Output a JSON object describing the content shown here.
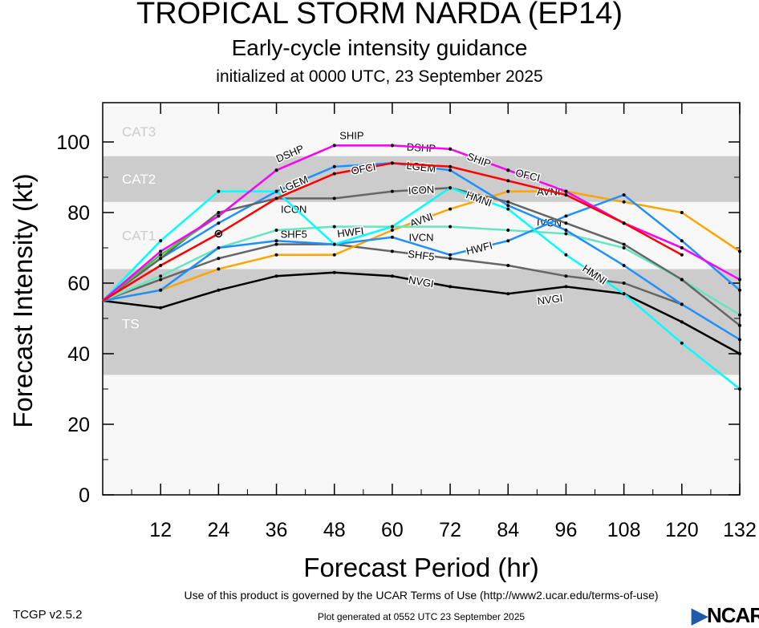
{
  "title": "TROPICAL STORM NARDA (EP14)",
  "subtitle": "Early-cycle intensity guidance",
  "subtitle2": "initialized at 0000 UTC, 23 September 2025",
  "footer": {
    "terms": "Use of this product is governed by the UCAR Terms of Use (http://www2.ucar.edu/terms-of-use)",
    "generated": "Plot generated at 0552 UTC   23 September 2025",
    "version": "TCGP v2.5.2",
    "logo": "NCAR"
  },
  "chart_data": {
    "type": "line",
    "xlabel": "Forecast Period (hr)",
    "ylabel": "Forecast Intensity (kt)",
    "xlim": [
      0,
      132
    ],
    "ylim": [
      0,
      110
    ],
    "xticks": [
      12,
      24,
      36,
      48,
      60,
      72,
      84,
      96,
      108,
      120,
      132
    ],
    "yticks": [
      0,
      20,
      40,
      60,
      80,
      100
    ],
    "grid": false,
    "bands": [
      {
        "label": "TS",
        "min": 34,
        "max": 64,
        "color": "#cccccc"
      },
      {
        "label": "CAT1",
        "min": 64,
        "max": 83,
        "color": "#f8f8f8"
      },
      {
        "label": "CAT2",
        "min": 83,
        "max": 96,
        "color": "#cccccc"
      },
      {
        "label": "CAT3",
        "min": 96,
        "max": 110,
        "color": "#f8f8f8"
      }
    ],
    "below_band_color": "#f8f8f8",
    "x": [
      0,
      12,
      24,
      36,
      48,
      60,
      72,
      84,
      96,
      108,
      120,
      132
    ],
    "series": [
      {
        "name": "NVGI",
        "color": "#000000",
        "values": [
          55,
          53,
          58,
          62,
          63,
          62,
          59,
          57,
          59,
          57,
          49,
          40
        ]
      },
      {
        "name": "SHF5",
        "color": "#666666",
        "values": [
          55,
          61,
          67,
          71,
          71,
          69,
          67,
          65,
          62,
          60,
          54,
          null
        ]
      },
      {
        "name": "AVNI",
        "color": "#ffa500",
        "values": [
          55,
          58,
          64,
          68,
          68,
          75,
          81,
          86,
          86,
          83,
          80,
          69
        ]
      },
      {
        "name": "IVCN",
        "color": "#66e6c0",
        "values": [
          55,
          62,
          70,
          75,
          76,
          76,
          76,
          75,
          74,
          70,
          61,
          51
        ]
      },
      {
        "name": "HWFI",
        "color": "#1e90ff",
        "values": [
          55,
          58,
          70,
          72,
          71,
          73,
          68,
          72,
          79,
          85,
          72,
          58
        ]
      },
      {
        "name": "LGEM",
        "color": "#1e90ff",
        "values": [
          55,
          67,
          77,
          86,
          93,
          94,
          92,
          82,
          75,
          65,
          54,
          44
        ]
      },
      {
        "name": "ICON",
        "color": "#666666",
        "values": [
          55,
          67,
          80,
          84,
          84,
          86,
          87,
          83,
          77,
          71,
          61,
          48
        ]
      },
      {
        "name": "HMNI",
        "color": "#00ffff",
        "values": [
          55,
          72,
          86,
          86,
          71,
          76,
          87,
          81,
          68,
          57,
          43,
          30
        ]
      },
      {
        "name": "DSHP",
        "color": "#32cd32",
        "values": [
          55,
          68,
          79,
          92,
          99,
          99,
          98,
          92,
          86,
          77,
          70,
          null
        ]
      },
      {
        "name": "SHIP",
        "color": "#ff00ff",
        "values": [
          55,
          69,
          79,
          92,
          99,
          99,
          98,
          92,
          86,
          77,
          70,
          61
        ]
      },
      {
        "name": "OFCI",
        "color": "#ff0000",
        "values": [
          55,
          65,
          74,
          84,
          91,
          94,
          93,
          89,
          85,
          77,
          68,
          null
        ]
      }
    ]
  }
}
